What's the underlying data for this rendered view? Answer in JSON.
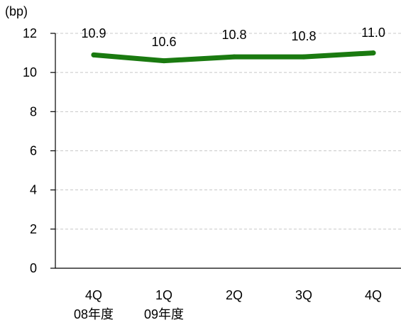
{
  "chart_data": {
    "type": "line",
    "title": "",
    "ylabel": "(bp)",
    "xlabel": "",
    "ylim": [
      0,
      12
    ],
    "yticks": [
      0,
      2,
      4,
      6,
      8,
      10,
      12
    ],
    "grid": true,
    "legend": "none",
    "categories": [
      {
        "line1": "4Q",
        "line2": "08年度"
      },
      {
        "line1": "1Q",
        "line2": "09年度"
      },
      {
        "line1": "2Q",
        "line2": ""
      },
      {
        "line1": "3Q",
        "line2": ""
      },
      {
        "line1": "4Q",
        "line2": ""
      }
    ],
    "series": [
      {
        "values": [
          10.9,
          10.6,
          10.8,
          10.8,
          11.0
        ],
        "labels": [
          "10.9",
          "10.6",
          "10.8",
          "10.8",
          "11.0"
        ],
        "color": "#1a7a10"
      }
    ]
  }
}
